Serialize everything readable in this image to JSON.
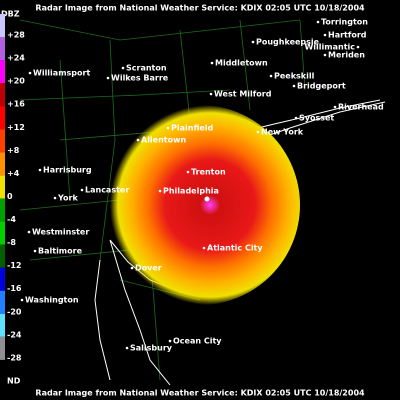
{
  "header": {
    "title": "Radar Image from National Weather Service: KDIX  02:05 UTC 10/18/2004"
  },
  "footer": {
    "title": "Radar Image from National Weather Service: KDIX  02:05 UTC 10/18/2004"
  },
  "legend": {
    "unit": "DBZ",
    "labels": [
      "+28",
      "+24",
      "+20",
      "+16",
      "+12",
      "+8",
      "+4",
      "0",
      "-4",
      "-8",
      "-12",
      "-16",
      "-20",
      "-24",
      "-28",
      "ND"
    ]
  },
  "cities": [
    "Torrington",
    "Hartford",
    "Willimantic",
    "Poughkeepsie",
    "Meriden",
    "Williamsport",
    "Scranton",
    "Wilkes Barre",
    "Middletown",
    "Peekskill",
    "Bridgeport",
    "West Milford",
    "Riverhead",
    "Plainfield",
    "Syosset",
    "New York",
    "Allentown",
    "Trenton",
    "Harrisburg",
    "Lancaster",
    "Philadelphia",
    "York",
    "Westminster",
    "Atlantic City",
    "Baltimore",
    "Dover",
    "Washington",
    "Ocean City",
    "Salisbury"
  ]
}
